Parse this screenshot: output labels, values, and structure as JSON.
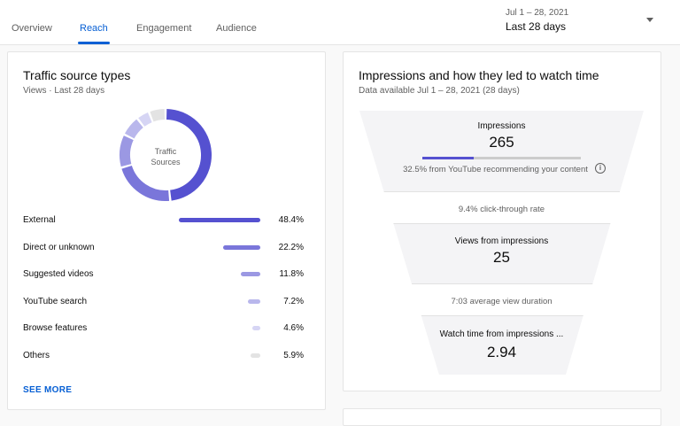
{
  "tabs": [
    {
      "label": "Overview"
    },
    {
      "label": "Reach",
      "active": true
    },
    {
      "label": "Engagement"
    },
    {
      "label": "Audience"
    }
  ],
  "date": {
    "range": "Jul 1 – 28, 2021",
    "label": "Last 28 days"
  },
  "traffic": {
    "title": "Traffic source types",
    "subtitle": "Views · Last 28 days",
    "donut_label_1": "Traffic",
    "donut_label_2": "Sources",
    "rows": [
      {
        "label": "External",
        "value": "48.4%",
        "pct": 48.4,
        "color": "#5551d0"
      },
      {
        "label": "Direct or unknown",
        "value": "22.2%",
        "pct": 22.2,
        "color": "#7a76da"
      },
      {
        "label": "Suggested videos",
        "value": "11.8%",
        "pct": 11.8,
        "color": "#9b98e3"
      },
      {
        "label": "YouTube search",
        "value": "7.2%",
        "pct": 7.2,
        "color": "#b9b7ec"
      },
      {
        "label": "Browse features",
        "value": "4.6%",
        "pct": 4.6,
        "color": "#d6d5f4"
      },
      {
        "label": "Others",
        "value": "5.9%",
        "pct": 5.9,
        "color": "#e3e3e3"
      }
    ],
    "see_more": "SEE MORE"
  },
  "funnel": {
    "title": "Impressions and how they led to watch time",
    "subtitle": "Data available Jul 1 – 28, 2021 (28 days)",
    "impressions_label": "Impressions",
    "impressions_value": "265",
    "recommend_pct": 32.5,
    "recommend_text": "32.5% from YouTube recommending your content",
    "ctr_text": "9.4% click-through rate",
    "views_label": "Views from impressions",
    "views_value": "25",
    "avd_text": "7:03 average view duration",
    "watch_label": "Watch time from impressions ...",
    "watch_value": "2.94"
  }
}
